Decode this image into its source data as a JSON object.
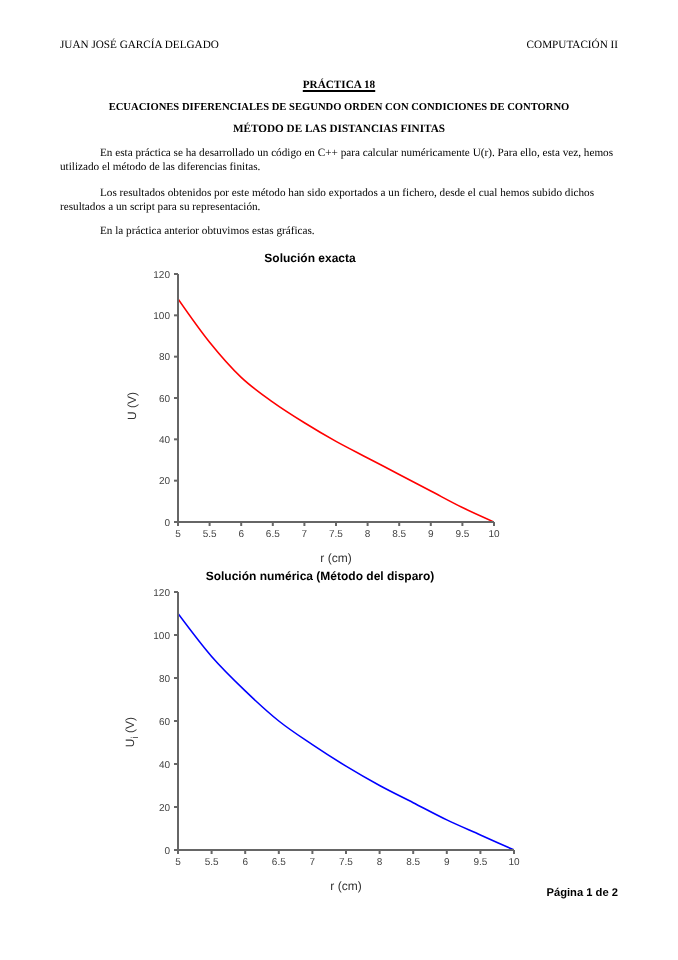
{
  "chart_data": [
    {
      "type": "line",
      "title": "Solución exacta",
      "xlabel": "r (cm)",
      "ylabel": "U (V)",
      "annotations": [
        "JUAN JOSÉ GARCÍA DELGADO",
        "COMPUTACIÓN II",
        "PRÁCTICA 18",
        "ECUACIONES DIFERENCIALES DE SEGUNDO ORDEN CON CONDICIONES DE CONTORNO",
        "MÉTODO DE LAS DISTANCIAS FINITAS",
        "En esta práctica se ha desarrollado un código en C++ para calcular numéricamente U(r). Para ello, esta vez, hemos utilizado el método de las diferencias finitas.",
        "Los resultados obtenidos por este método han sido exportados a un fichero, desde el cual hemos subido dichos resultados a un script para su representación.",
        "En la práctica anterior obtuvimos estas gráficas."
      ],
      "x": [
        5,
        5.5,
        6,
        6.5,
        7,
        7.5,
        8,
        8.5,
        9,
        9.5,
        10
      ],
      "series": [
        {
          "color": "#ff0000",
          "values": [
            108,
            87,
            70,
            58,
            48,
            39,
            31,
            23,
            15,
            7,
            0
          ]
        }
      ],
      "xlim": [
        5,
        10
      ],
      "xticks": [
        5,
        5.5,
        6,
        6.5,
        7,
        7.5,
        8,
        8.5,
        9,
        9.5,
        10
      ],
      "ylim": [
        0,
        120
      ],
      "yticks": [
        0,
        20,
        40,
        60,
        80,
        100,
        120
      ],
      "grid": false,
      "legend": false,
      "marker": "none",
      "line_style": "solid"
    },
    {
      "type": "line",
      "title": "Solución numérica (Método del disparo)",
      "xlabel": "r (cm)",
      "ylabel": "U$_{i}$ (V)",
      "annotations": [
        "Página 1 de 2"
      ],
      "x": [
        5,
        5.5,
        6,
        6.5,
        7,
        7.5,
        8,
        8.5,
        9,
        9.5,
        10
      ],
      "series": [
        {
          "color": "#0000ff",
          "values": [
            110,
            90,
            74,
            60,
            49,
            39,
            30,
            22,
            14,
            7,
            0
          ]
        }
      ],
      "xlim": [
        5,
        10
      ],
      "xticks": [
        5,
        5.5,
        6,
        6.5,
        7,
        7.5,
        8,
        8.5,
        9,
        9.5,
        10
      ],
      "ylim": [
        0,
        120
      ],
      "yticks": [
        0,
        20,
        40,
        60,
        80,
        100,
        120
      ],
      "grid": false,
      "legend": false,
      "marker": "none",
      "line_style": "solid"
    }
  ]
}
